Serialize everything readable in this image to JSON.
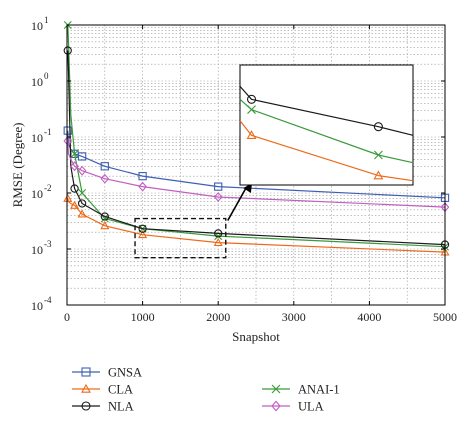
{
  "chart_data": {
    "type": "line",
    "xlabel": "Snapshot",
    "ylabel": "RMSE (Degree)",
    "xlim": [
      0,
      5000
    ],
    "ylim": [
      0.0001,
      10
    ],
    "yscale": "log",
    "grid": true,
    "x_ticks": [
      {
        "value": 0,
        "label": "0"
      },
      {
        "value": 1000,
        "label": "1000"
      },
      {
        "value": 2000,
        "label": "2000"
      },
      {
        "value": 3000,
        "label": "3000"
      },
      {
        "value": 4000,
        "label": "4000"
      },
      {
        "value": 5000,
        "label": "5000"
      }
    ],
    "y_ticks": [
      {
        "value": 10,
        "base": "10",
        "exp": "1"
      },
      {
        "value": 1,
        "base": "10",
        "exp": "0"
      },
      {
        "value": 0.1,
        "base": "10",
        "exp": "-1"
      },
      {
        "value": 0.01,
        "base": "10",
        "exp": "-2"
      },
      {
        "value": 0.001,
        "base": "10",
        "exp": "-3"
      },
      {
        "value": 0.0001,
        "base": "10",
        "exp": "-4"
      }
    ],
    "legend_position": "below",
    "series": [
      {
        "name": "GNSA",
        "color": "#3f5fb5",
        "marker": "square",
        "x": [
          10,
          20,
          50,
          100,
          200,
          500,
          1000,
          2000,
          5000
        ],
        "y": [
          0.13,
          0.075,
          0.06,
          0.05,
          0.045,
          0.03,
          0.02,
          0.013,
          0.0082
        ],
        "marker_x": [
          10,
          100,
          200,
          500,
          1000,
          2000,
          5000
        ]
      },
      {
        "name": "ANAI-1",
        "color": "#3a9a3a",
        "marker": "x",
        "x": [
          10,
          20,
          50,
          100,
          200,
          500,
          1000,
          2000,
          5000
        ],
        "y": [
          10,
          5,
          0.25,
          0.05,
          0.01,
          0.0035,
          0.0023,
          0.0017,
          0.0011
        ],
        "marker_x": [
          10,
          100,
          200,
          500,
          1000,
          2000,
          5000
        ]
      },
      {
        "name": "CLA",
        "color": "#ee6a1a",
        "marker": "triangle",
        "x": [
          10,
          20,
          50,
          100,
          200,
          500,
          1000,
          2000,
          5000
        ],
        "y": [
          0.008,
          0.007,
          0.0065,
          0.006,
          0.0042,
          0.0026,
          0.0018,
          0.0013,
          0.00088
        ],
        "marker_x": [
          10,
          100,
          200,
          500,
          1000,
          2000,
          5000
        ]
      },
      {
        "name": "NLA",
        "color": "#1a1a1a",
        "marker": "circle",
        "x": [
          10,
          20,
          50,
          100,
          200,
          500,
          1000,
          2000,
          5000
        ],
        "y": [
          3.5,
          1.5,
          0.03,
          0.012,
          0.0065,
          0.0038,
          0.0023,
          0.0019,
          0.0012
        ],
        "marker_x": [
          10,
          100,
          200,
          500,
          1000,
          2000,
          5000
        ]
      },
      {
        "name": "ULA",
        "color": "#c35fc3",
        "marker": "diamond",
        "x": [
          10,
          20,
          50,
          100,
          200,
          500,
          1000,
          2000,
          5000
        ],
        "y": [
          0.085,
          0.05,
          0.04,
          0.03,
          0.025,
          0.018,
          0.013,
          0.0085,
          0.0056
        ],
        "marker_x": [
          10,
          100,
          200,
          500,
          1000,
          2000,
          5000
        ]
      }
    ],
    "zoom_box": {
      "x_range": [
        900,
        2100
      ],
      "y_range": [
        0.0007,
        0.0035
      ]
    },
    "inset": {
      "x_range": [
        2000,
        5000
      ],
      "y_range": [
        0.0011,
        0.0025
      ],
      "series": [
        {
          "color": "#1a1a1a",
          "marker": "circle",
          "x": [
            2000,
            2200,
            4400,
            5000
          ],
          "y": [
            0.00225,
            0.0021,
            0.00178,
            0.00168
          ],
          "marker_x": [
            2200,
            4400
          ]
        },
        {
          "color": "#3a9a3a",
          "marker": "x",
          "x": [
            2000,
            2200,
            4400,
            5000
          ],
          "y": [
            0.0021,
            0.00198,
            0.00145,
            0.00136
          ],
          "marker_x": [
            2200,
            4400
          ]
        },
        {
          "color": "#ee6a1a",
          "marker": "triangle",
          "x": [
            2000,
            2200,
            4400,
            5000
          ],
          "y": [
            0.00185,
            0.00168,
            0.00121,
            0.00115
          ],
          "marker_x": [
            2200,
            4400
          ]
        }
      ]
    },
    "legend": [
      {
        "label": "GNSA",
        "color": "#3f5fb5",
        "marker": "square"
      },
      {
        "label": "ANAI-1",
        "color": "#3a9a3a",
        "marker": "x"
      },
      {
        "label": "CLA",
        "color": "#ee6a1a",
        "marker": "triangle"
      },
      {
        "label": "ULA",
        "color": "#c35fc3",
        "marker": "diamond"
      },
      {
        "label": "NLA",
        "color": "#1a1a1a",
        "marker": "circle"
      }
    ]
  }
}
